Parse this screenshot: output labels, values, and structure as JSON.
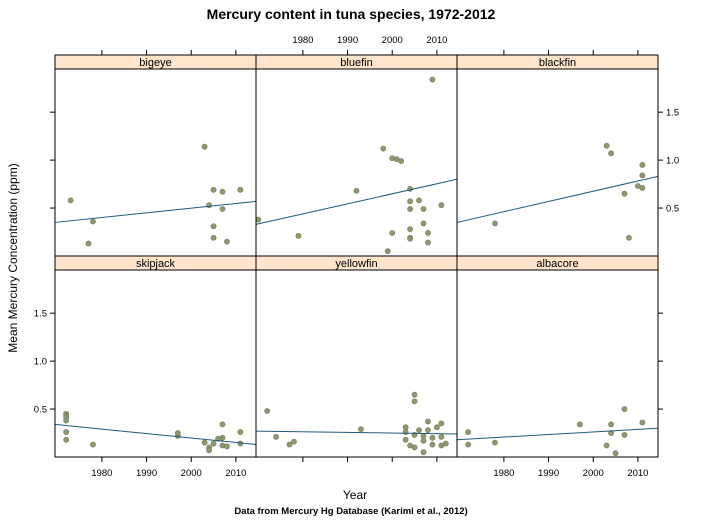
{
  "chart_data": {
    "type": "scatter",
    "title": "Mercury content in tuna species, 1972-2012",
    "caption": "Data from Mercury Hg Database (Karimi et al., 2012)",
    "xlabel": "Year",
    "ylabel": "Mean Mercury Concentration (ppm)",
    "xlim": [
      1969.5,
      2014.5
    ],
    "ylim": [
      0,
      1.95
    ],
    "xticks": [
      1980,
      1990,
      2000,
      2010
    ],
    "yticks": [
      0.5,
      1.0,
      1.5
    ],
    "xtick_labels": [
      "1980",
      "1990",
      "2000",
      "2010"
    ],
    "ytick_labels": [
      "0.5",
      "1.0",
      "1.5"
    ],
    "colors": {
      "strip_bg": "#ffe5cc",
      "point": "#8c9a72",
      "point_edge": "#6f7d58",
      "line": "#1f5a7a"
    },
    "panels": [
      {
        "name": "bigeye",
        "row": 0,
        "col": 0,
        "points": [
          [
            1973,
            0.58
          ],
          [
            1978,
            0.36
          ],
          [
            1977,
            0.13
          ],
          [
            2003,
            1.14
          ],
          [
            2004,
            0.53
          ],
          [
            2005,
            0.69
          ],
          [
            2005,
            0.31
          ],
          [
            2005,
            0.19
          ],
          [
            2007,
            0.49
          ],
          [
            2008,
            0.15
          ],
          [
            2007,
            0.67
          ],
          [
            2011,
            0.69
          ]
        ],
        "fit": [
          [
            1969.5,
            0.35
          ],
          [
            2014.5,
            0.57
          ]
        ]
      },
      {
        "name": "bluefin",
        "row": 0,
        "col": 1,
        "points": [
          [
            1970,
            0.38
          ],
          [
            1979,
            0.21
          ],
          [
            1992,
            0.68
          ],
          [
            1998,
            1.12
          ],
          [
            1999,
            0.05
          ],
          [
            2000,
            0.24
          ],
          [
            2000,
            1.02
          ],
          [
            2001,
            1.01
          ],
          [
            2002,
            0.99
          ],
          [
            2004,
            0.7
          ],
          [
            2004,
            0.57
          ],
          [
            2004,
            0.49
          ],
          [
            2004,
            0.28
          ],
          [
            2004,
            0.19
          ],
          [
            2004,
            0.18
          ],
          [
            2006,
            0.58
          ],
          [
            2007,
            0.49
          ],
          [
            2007,
            0.34
          ],
          [
            2008,
            0.24
          ],
          [
            2008,
            0.14
          ],
          [
            2009,
            1.84
          ],
          [
            2011,
            0.53
          ]
        ],
        "fit": [
          [
            1969.5,
            0.33
          ],
          [
            2014.5,
            0.8
          ]
        ]
      },
      {
        "name": "blackfin",
        "row": 0,
        "col": 2,
        "points": [
          [
            1978,
            0.34
          ],
          [
            2003,
            1.15
          ],
          [
            2004,
            1.07
          ],
          [
            2007,
            0.65
          ],
          [
            2008,
            0.19
          ],
          [
            2010,
            0.73
          ],
          [
            2011,
            0.71
          ],
          [
            2011,
            0.84
          ],
          [
            2011,
            0.95
          ]
        ],
        "fit": [
          [
            1969.5,
            0.35
          ],
          [
            2014.5,
            0.83
          ]
        ]
      },
      {
        "name": "skipjack",
        "row": 1,
        "col": 0,
        "points": [
          [
            1972,
            0.45
          ],
          [
            1972,
            0.43
          ],
          [
            1972,
            0.41
          ],
          [
            1972,
            0.38
          ],
          [
            1972,
            0.26
          ],
          [
            1972,
            0.18
          ],
          [
            1978,
            0.13
          ],
          [
            1997,
            0.22
          ],
          [
            1997,
            0.25
          ],
          [
            2003,
            0.15
          ],
          [
            2004,
            0.1
          ],
          [
            2004,
            0.07
          ],
          [
            2005,
            0.14
          ],
          [
            2006,
            0.19
          ],
          [
            2007,
            0.12
          ],
          [
            2007,
            0.2
          ],
          [
            2007,
            0.34
          ],
          [
            2008,
            0.11
          ],
          [
            2011,
            0.14
          ],
          [
            2011,
            0.26
          ]
        ],
        "fit": [
          [
            1969.5,
            0.34
          ],
          [
            2014.5,
            0.13
          ]
        ]
      },
      {
        "name": "yellowfin",
        "row": 1,
        "col": 1,
        "points": [
          [
            1972,
            0.48
          ],
          [
            1974,
            0.21
          ],
          [
            1977,
            0.13
          ],
          [
            1978,
            0.16
          ],
          [
            1993,
            0.29
          ],
          [
            2003,
            0.31
          ],
          [
            2003,
            0.26
          ],
          [
            2003,
            0.18
          ],
          [
            2004,
            0.12
          ],
          [
            2005,
            0.1
          ],
          [
            2005,
            0.23
          ],
          [
            2005,
            0.58
          ],
          [
            2005,
            0.65
          ],
          [
            2006,
            0.28
          ],
          [
            2007,
            0.05
          ],
          [
            2007,
            0.17
          ],
          [
            2007,
            0.22
          ],
          [
            2008,
            0.28
          ],
          [
            2008,
            0.37
          ],
          [
            2009,
            0.13
          ],
          [
            2009,
            0.2
          ],
          [
            2010,
            0.31
          ],
          [
            2011,
            0.12
          ],
          [
            2011,
            0.21
          ],
          [
            2011,
            0.35
          ],
          [
            2012,
            0.14
          ]
        ],
        "fit": [
          [
            1969.5,
            0.27
          ],
          [
            2014.5,
            0.24
          ]
        ]
      },
      {
        "name": "albacore",
        "row": 1,
        "col": 2,
        "points": [
          [
            1972,
            0.26
          ],
          [
            1972,
            0.13
          ],
          [
            1978,
            0.15
          ],
          [
            1997,
            0.34
          ],
          [
            2003,
            0.12
          ],
          [
            2004,
            0.34
          ],
          [
            2004,
            0.25
          ],
          [
            2005,
            0.04
          ],
          [
            2007,
            0.5
          ],
          [
            2007,
            0.23
          ],
          [
            2011,
            0.36
          ]
        ],
        "fit": [
          [
            1969.5,
            0.18
          ],
          [
            2014.5,
            0.3
          ]
        ]
      }
    ]
  }
}
